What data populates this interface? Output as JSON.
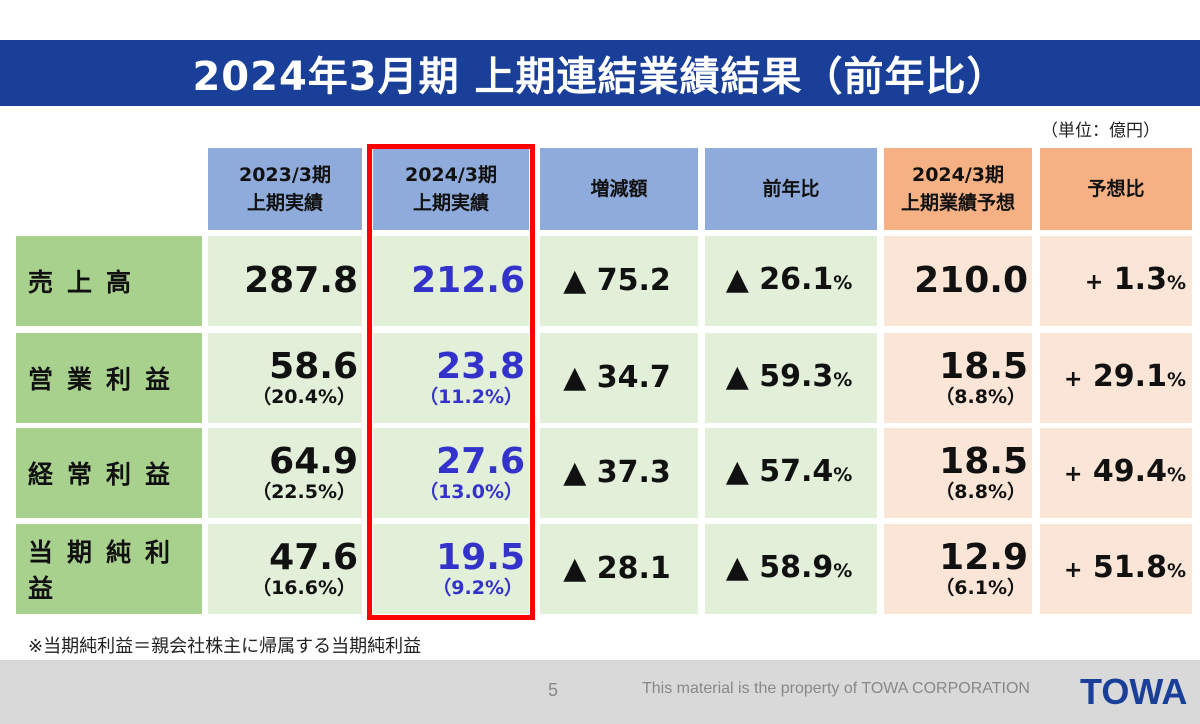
{
  "title": "2024年3月期 上期連結業績結果（前年比）",
  "unit": "（単位：億円）",
  "headers": {
    "col1": [
      "2023/3期",
      "上期実績"
    ],
    "col2": [
      "2024/3期",
      "上期実績"
    ],
    "col3": "増減額",
    "col4": "前年比",
    "col5": [
      "2024/3期",
      "上期業績予想"
    ],
    "col6": "予想比"
  },
  "rows": [
    {
      "label": "売上高",
      "prev": "287.8",
      "prev_margin": "",
      "curr": "212.6",
      "curr_margin": "",
      "diff": "▲ 75.2",
      "yoy": "▲ 26.1",
      "yoy_unit": "%",
      "forecast": "210.0",
      "forecast_margin": "",
      "vs_forecast_sign": "+",
      "vs_forecast": "1.3",
      "vs_forecast_unit": "%"
    },
    {
      "label": "営業利益",
      "prev": "58.6",
      "prev_margin": "（20.4%）",
      "curr": "23.8",
      "curr_margin": "（11.2%）",
      "diff": "▲ 34.7",
      "yoy": "▲ 59.3",
      "yoy_unit": "%",
      "forecast": "18.5",
      "forecast_margin": "（8.8%）",
      "vs_forecast_sign": "+",
      "vs_forecast": "29.1",
      "vs_forecast_unit": "%"
    },
    {
      "label": "経常利益",
      "prev": "64.9",
      "prev_margin": "（22.5%）",
      "curr": "27.6",
      "curr_margin": "（13.0%）",
      "diff": "▲ 37.3",
      "yoy": "▲ 57.4",
      "yoy_unit": "%",
      "forecast": "18.5",
      "forecast_margin": "（8.8%）",
      "vs_forecast_sign": "+",
      "vs_forecast": "49.4",
      "vs_forecast_unit": "%"
    },
    {
      "label": "当期純利益",
      "prev": "47.6",
      "prev_margin": "（16.6%）",
      "curr": "19.5",
      "curr_margin": "（9.2%）",
      "diff": "▲ 28.1",
      "yoy": "▲ 58.9",
      "yoy_unit": "%",
      "forecast": "12.9",
      "forecast_margin": "（6.1%）",
      "vs_forecast_sign": "+",
      "vs_forecast": "51.8",
      "vs_forecast_unit": "%"
    }
  ],
  "note": "※当期純利益＝親会社株主に帰属する当期純利益",
  "footer": {
    "page": "5",
    "property": "This material is the property of TOWA CORPORATION",
    "logo_text": "TOWA"
  },
  "colors": {
    "title_bg": "#1a3f99",
    "header_blue": "#8fabdb",
    "header_orange": "#f5b183",
    "label_green": "#a9d18e",
    "cell_green": "#e2efd9",
    "cell_peach": "#fbe5d6",
    "highlight_red": "#ff0000",
    "current_value_blue": "#3333cc"
  }
}
